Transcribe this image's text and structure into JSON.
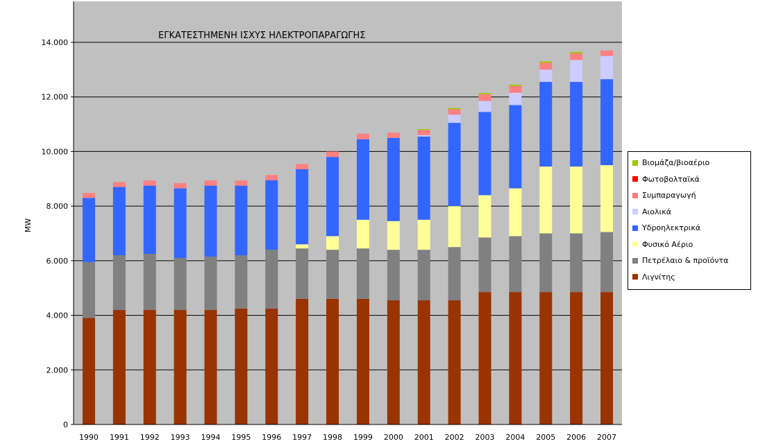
{
  "chart_data": {
    "type": "bar",
    "stacked": true,
    "title": "ΕΓΚΑΤΕΣΤΗΜΕΝΗ ΙΣΧΥΣ ΗΛΕΚΤΡΟΠΑΡΑΓΩΓΗΣ",
    "ylabel": "MW",
    "xlabel": "",
    "ylim": [
      0,
      14000
    ],
    "yticks": [
      0,
      2000,
      4000,
      6000,
      8000,
      10000,
      12000,
      14000
    ],
    "ytick_labels": [
      "0",
      "2.000",
      "4.000",
      "6.000",
      "8.000",
      "10.000",
      "12.000",
      "14.000"
    ],
    "grid": true,
    "legend_position": "right",
    "categories": [
      "1990",
      "1991",
      "1992",
      "1993",
      "1994",
      "1995",
      "1996",
      "1997",
      "1998",
      "1999",
      "2000",
      "2001",
      "2002",
      "2003",
      "2004",
      "2005",
      "2006",
      "2007"
    ],
    "series": [
      {
        "name": "Λιγνίτης",
        "color": "#993300",
        "values": [
          3900,
          4200,
          4200,
          4200,
          4200,
          4250,
          4250,
          4600,
          4600,
          4600,
          4550,
          4550,
          4550,
          4850,
          4850,
          4850,
          4850,
          4850
        ]
      },
      {
        "name": "Πετρέλαιο & προϊόντα",
        "color": "#808080",
        "values": [
          2050,
          2000,
          2050,
          1900,
          1950,
          1950,
          2150,
          1850,
          1800,
          1850,
          1850,
          1850,
          1950,
          2000,
          2050,
          2150,
          2150,
          2200
        ]
      },
      {
        "name": "Φυσικό Αέριο",
        "color": "#ffff99",
        "values": [
          0,
          0,
          0,
          0,
          0,
          0,
          0,
          150,
          500,
          1050,
          1050,
          1100,
          1500,
          1550,
          1750,
          2450,
          2450,
          2450
        ]
      },
      {
        "name": "Υδροηλεκτρικά",
        "color": "#3366ff",
        "values": [
          2350,
          2500,
          2500,
          2550,
          2600,
          2550,
          2550,
          2750,
          2900,
          2950,
          3050,
          3050,
          3050,
          3050,
          3050,
          3100,
          3100,
          3150
        ]
      },
      {
        "name": "Αιολικά",
        "color": "#ccccff",
        "values": [
          0,
          0,
          0,
          0,
          0,
          0,
          0,
          0,
          0,
          0,
          0,
          50,
          300,
          400,
          450,
          450,
          800,
          850
        ]
      },
      {
        "name": "Συμπαραγωγή",
        "color": "#ff8080",
        "values": [
          180,
          180,
          190,
          190,
          190,
          190,
          190,
          190,
          200,
          200,
          190,
          190,
          200,
          250,
          250,
          250,
          250,
          200
        ]
      },
      {
        "name": "Φωτοβολταϊκά",
        "color": "#ff0000",
        "values": [
          0,
          0,
          0,
          0,
          0,
          0,
          0,
          0,
          0,
          0,
          0,
          0,
          0,
          0,
          0,
          0,
          0,
          0
        ]
      },
      {
        "name": "Βιομάζα/βιοαέριο",
        "color": "#99cc00",
        "values": [
          0,
          0,
          0,
          0,
          0,
          0,
          0,
          0,
          0,
          0,
          0,
          30,
          40,
          40,
          50,
          50,
          50,
          0
        ]
      }
    ],
    "legend_order": [
      "Βιομάζα/βιοαέριο",
      "Φωτοβολταϊκά",
      "Συμπαραγωγή",
      "Αιολικά",
      "Υδροηλεκτρικά",
      "Φυσικό Αέριο",
      "Πετρέλαιο & προϊόντα",
      "Λιγνίτης"
    ],
    "plot_background": "#c0c0c0"
  }
}
